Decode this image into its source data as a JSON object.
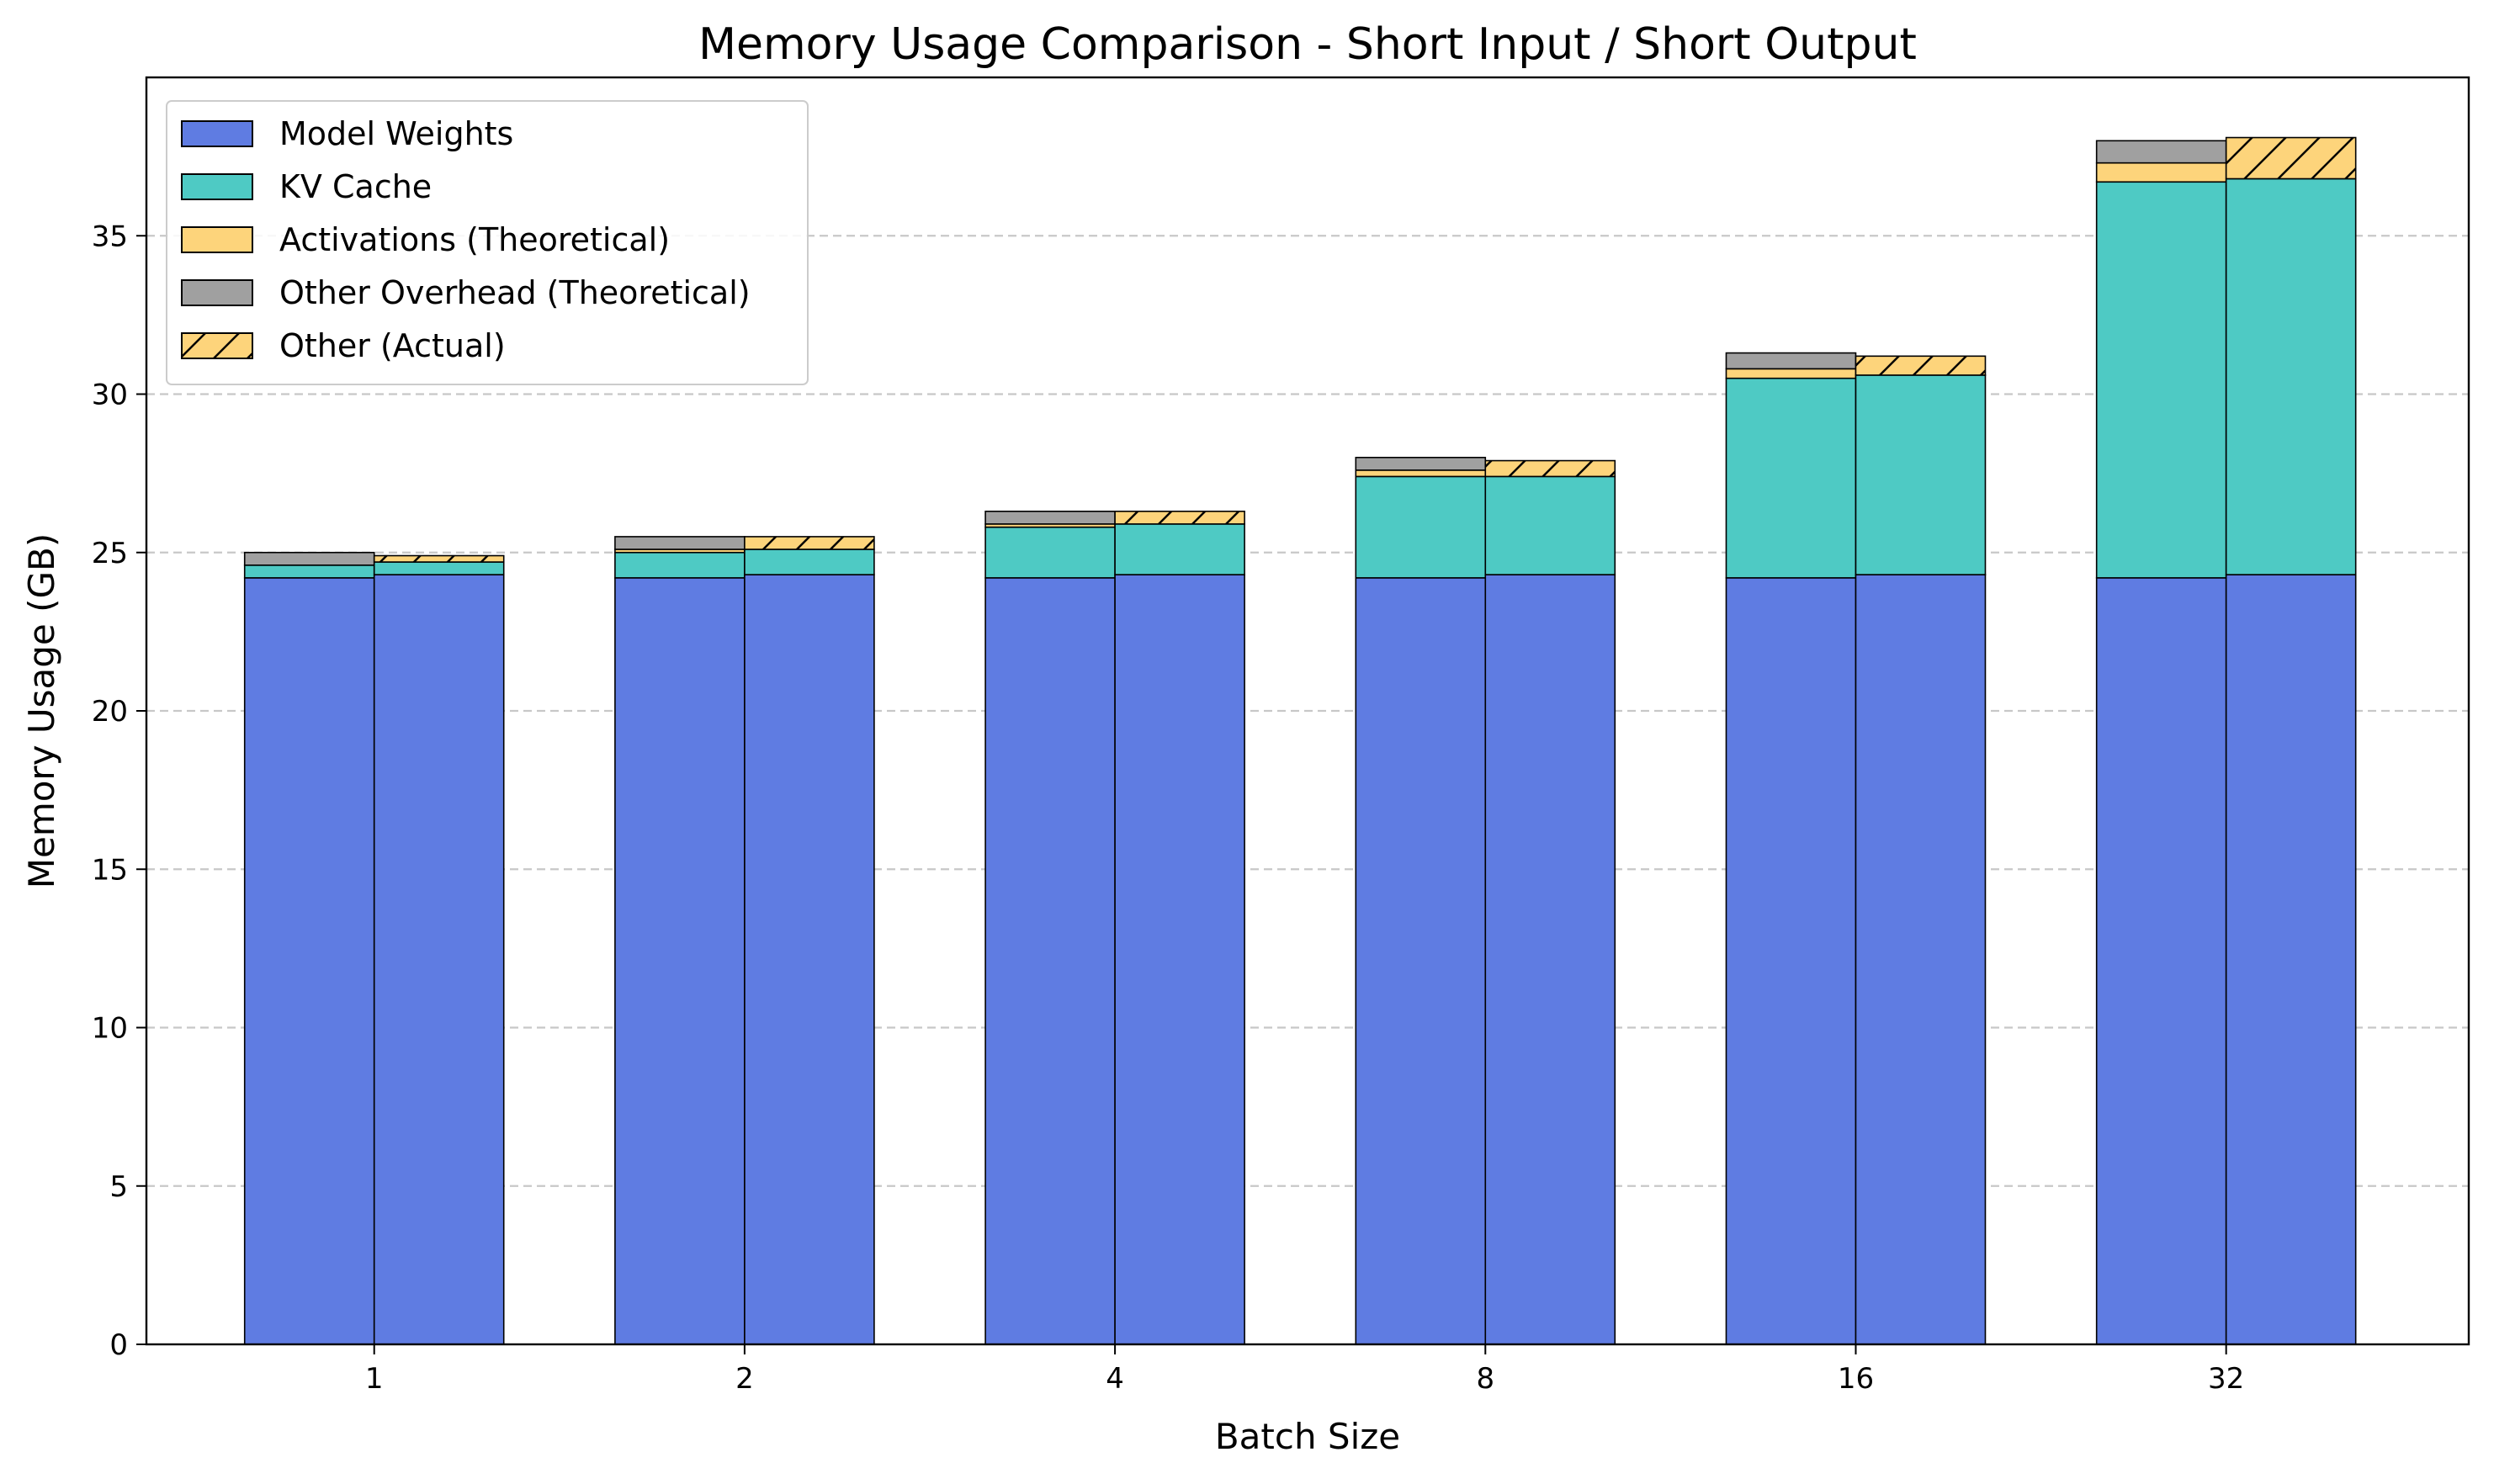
{
  "chart_data": {
    "type": "bar",
    "title": "Memory Usage Comparison - Short Input / Short Output",
    "xlabel": "Batch Size",
    "ylabel": "Memory Usage (GB)",
    "ylim": [
      0,
      40
    ],
    "yticks": [
      0,
      5,
      10,
      15,
      20,
      25,
      30,
      35
    ],
    "categories": [
      "1",
      "2",
      "4",
      "8",
      "16",
      "32"
    ],
    "grid": "horizontal dashed",
    "legend_position": "top-left",
    "theoretical": {
      "model_weights": [
        24.2,
        24.2,
        24.2,
        24.2,
        24.2,
        24.2
      ],
      "kv_cache": [
        0.4,
        0.8,
        1.6,
        3.2,
        6.3,
        12.5
      ],
      "activations": [
        0.0,
        0.1,
        0.1,
        0.2,
        0.3,
        0.6
      ],
      "other_overhead": [
        0.4,
        0.4,
        0.4,
        0.4,
        0.5,
        0.7
      ]
    },
    "actual": {
      "model_weights": [
        24.3,
        24.3,
        24.3,
        24.3,
        24.3,
        24.3
      ],
      "kv_cache": [
        0.4,
        0.8,
        1.6,
        3.1,
        6.3,
        12.5
      ],
      "other_actual": [
        0.2,
        0.4,
        0.4,
        0.5,
        0.6,
        1.3
      ]
    },
    "legend": [
      {
        "name": "Model Weights",
        "color": "#5F7CE2",
        "hatch": false
      },
      {
        "name": "KV Cache",
        "color": "#4ECAC4",
        "hatch": false
      },
      {
        "name": "Activations (Theoretical)",
        "color": "#FDD47B",
        "hatch": false
      },
      {
        "name": "Other Overhead (Theoretical)",
        "color": "#A0A0A0",
        "hatch": false
      },
      {
        "name": "Other (Actual)",
        "color": "#FDD47B",
        "hatch": true
      }
    ],
    "colors": {
      "model_weights": "#5F7CE2",
      "kv_cache": "#4ECAC4",
      "activations": "#FDD47B",
      "other_overhead": "#A0A0A0",
      "other_actual": "#FDD47B"
    }
  }
}
